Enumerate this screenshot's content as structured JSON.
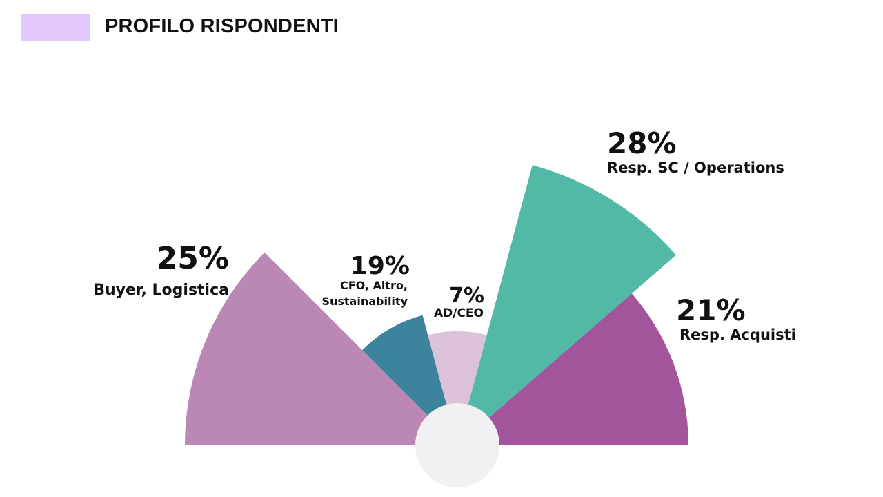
{
  "page": {
    "title": "PROFILO RISPONDENTI",
    "accent_color": "#e3c9fb"
  },
  "chart_data": {
    "type": "pie",
    "variant": "polar-area semicircle",
    "title": "PROFILO RISPONDENTI",
    "slices": [
      {
        "label": "Buyer, Logistica",
        "label_lines": [
          "Buyer, Logistica"
        ],
        "value": 25,
        "value_label": "25%",
        "color": "#bb87b5"
      },
      {
        "label": "CFO, Altro, Sustainability",
        "label_lines": [
          "CFO, Altro,",
          "Sustainability"
        ],
        "value": 19,
        "value_label": "19%",
        "color": "#3d839e"
      },
      {
        "label": "AD/CEO",
        "label_lines": [
          "AD/CEO"
        ],
        "value": 7,
        "value_label": "7%",
        "color": "#dcc2d8"
      },
      {
        "label": "Resp. SC / Operations",
        "label_lines": [
          "Resp. SC / Operations"
        ],
        "value": 28,
        "value_label": "28%",
        "color": "#52b9a6"
      },
      {
        "label": "Resp. Acquisti",
        "label_lines": [
          "Resp. Acquisti"
        ],
        "value": 21,
        "value_label": "21%",
        "color": "#a3559c"
      }
    ],
    "center_hole_color": "#f1f1f3"
  }
}
